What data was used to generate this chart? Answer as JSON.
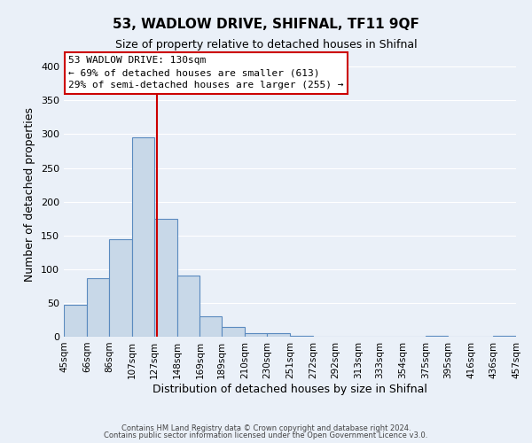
{
  "title": "53, WADLOW DRIVE, SHIFNAL, TF11 9QF",
  "subtitle": "Size of property relative to detached houses in Shifnal",
  "xlabel": "Distribution of detached houses by size in Shifnal",
  "ylabel": "Number of detached properties",
  "bin_edges": [
    45,
    66,
    86,
    107,
    127,
    148,
    169,
    189,
    210,
    230,
    251,
    272,
    292,
    313,
    333,
    354,
    375,
    395,
    416,
    436,
    457
  ],
  "bin_heights": [
    47,
    86,
    144,
    295,
    175,
    91,
    30,
    14,
    5,
    5,
    1,
    0,
    0,
    0,
    0,
    0,
    1,
    0,
    0,
    1
  ],
  "bar_facecolor": "#c8d8e8",
  "bar_edgecolor": "#5a8abf",
  "vline_x": 130,
  "vline_color": "#cc0000",
  "annotation_title": "53 WADLOW DRIVE: 130sqm",
  "annotation_line1": "← 69% of detached houses are smaller (613)",
  "annotation_line2": "29% of semi-detached houses are larger (255) →",
  "annotation_facecolor": "#ffffff",
  "annotation_edgecolor": "#cc0000",
  "ylim": [
    0,
    420
  ],
  "yticks": [
    0,
    50,
    100,
    150,
    200,
    250,
    300,
    350,
    400
  ],
  "bg_color": "#eaf0f8",
  "grid_color": "#ffffff",
  "footer1": "Contains HM Land Registry data © Crown copyright and database right 2024.",
  "footer2": "Contains public sector information licensed under the Open Government Licence v3.0.",
  "tick_labels": [
    "45sqm",
    "66sqm",
    "86sqm",
    "107sqm",
    "127sqm",
    "148sqm",
    "169sqm",
    "189sqm",
    "210sqm",
    "230sqm",
    "251sqm",
    "272sqm",
    "292sqm",
    "313sqm",
    "333sqm",
    "354sqm",
    "375sqm",
    "395sqm",
    "416sqm",
    "436sqm",
    "457sqm"
  ]
}
